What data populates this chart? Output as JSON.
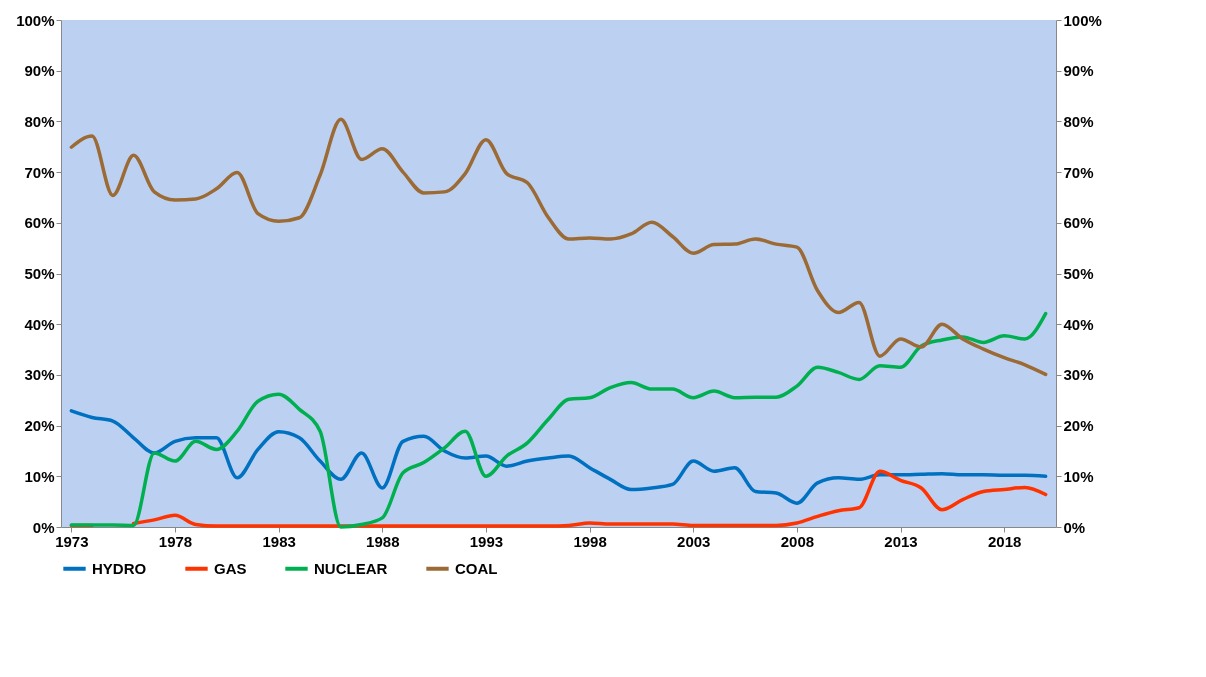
{
  "chart_data": {
    "type": "line",
    "x": [
      1973,
      1974,
      1975,
      1976,
      1977,
      1978,
      1979,
      1980,
      1981,
      1982,
      1983,
      1984,
      1985,
      1986,
      1987,
      1988,
      1989,
      1990,
      1991,
      1992,
      1993,
      1994,
      1995,
      1996,
      1997,
      1998,
      1999,
      2000,
      2001,
      2002,
      2003,
      2004,
      2005,
      2006,
      2007,
      2008,
      2009,
      2010,
      2011,
      2012,
      2013,
      2014,
      2015,
      2016,
      2017,
      2018,
      2019,
      2020
    ],
    "series": [
      {
        "name": "HYDRO",
        "color": "#0070c0",
        "values": [
          22.9,
          21.6,
          20.9,
          17.6,
          14.6,
          16.9,
          17.6,
          17.6,
          9.7,
          15.3,
          18.8,
          17.6,
          13.0,
          9.4,
          14.6,
          7.7,
          16.9,
          17.9,
          15.0,
          13.6,
          14.0,
          12.0,
          13.0,
          13.6,
          14.0,
          11.7,
          9.4,
          7.4,
          7.7,
          8.4,
          13.0,
          11.0,
          11.7,
          7.0,
          6.7,
          4.7,
          8.7,
          9.7,
          9.4,
          10.3,
          10.3,
          10.4,
          10.5,
          10.3,
          10.3,
          10.2,
          10.2,
          10.0
        ]
      },
      {
        "name": "GAS",
        "color": "#ff3300",
        "values": [
          0.3,
          0.3,
          null,
          0.7,
          1.4,
          2.3,
          0.5,
          0.2,
          0.2,
          0.2,
          0.2,
          0.2,
          0.2,
          0.2,
          0.2,
          0.2,
          0.2,
          0.2,
          0.2,
          0.2,
          0.2,
          0.2,
          0.2,
          0.2,
          0.3,
          0.8,
          0.6,
          0.6,
          0.6,
          0.6,
          0.3,
          0.3,
          0.3,
          0.3,
          0.3,
          0.8,
          2.1,
          3.2,
          3.8,
          11.0,
          9.2,
          7.7,
          3.4,
          5.4,
          7.0,
          7.4,
          7.8,
          6.4
        ]
      },
      {
        "name": "NUCLEAR",
        "color": "#00b050",
        "values": [
          0.4,
          0.4,
          0.4,
          0.3,
          14.6,
          13.0,
          16.9,
          15.3,
          18.9,
          24.8,
          26.2,
          23.2,
          18.9,
          0,
          0.5,
          1.8,
          10.7,
          12.7,
          15.6,
          18.9,
          10.0,
          14.0,
          16.6,
          21.2,
          25.2,
          25.5,
          27.5,
          28.5,
          27.2,
          27.2,
          25.5,
          26.8,
          25.5,
          25.6,
          25.6,
          27.8,
          31.5,
          30.5,
          29.1,
          31.8,
          31.5,
          35.7,
          36.9,
          37.5,
          36.4,
          37.7,
          37.1,
          42.1
        ]
      },
      {
        "name": "COAL",
        "color": "#9b6a35",
        "values": [
          74.9,
          77.1,
          65.4,
          73.3,
          66.1,
          64.5,
          64.7,
          66.7,
          69.9,
          61.8,
          60.3,
          61.0,
          69.4,
          80.4,
          72.5,
          74.6,
          70.0,
          65.9,
          66.1,
          69.7,
          76.4,
          69.7,
          67.9,
          61.1,
          56.8,
          57.0,
          56.8,
          57.8,
          60.1,
          57.3,
          54.0,
          55.7,
          55.8,
          56.8,
          55.8,
          55.2,
          46.6,
          42.3,
          44.3,
          33.7,
          37.1,
          35.5,
          40.0,
          37.1,
          35.1,
          33.4,
          32.0,
          30.1
        ]
      }
    ],
    "xlim": [
      1972.5,
      2020.5
    ],
    "xticks": [
      1973,
      1978,
      1983,
      1988,
      1993,
      1998,
      2003,
      2008,
      2013,
      2018
    ],
    "ylim": [
      0,
      100
    ],
    "yticks": [
      {
        "value": 0,
        "label": "0%"
      },
      {
        "value": 10,
        "label": "10%"
      },
      {
        "value": 20,
        "label": "20%"
      },
      {
        "value": 30,
        "label": "30%"
      },
      {
        "value": 40,
        "label": "40%"
      },
      {
        "value": 50,
        "label": "50%"
      },
      {
        "value": 60,
        "label": "60%"
      },
      {
        "value": 70,
        "label": "70%"
      },
      {
        "value": 80,
        "label": "80%"
      },
      {
        "value": 90,
        "label": "90%"
      },
      {
        "value": 100,
        "label": "100%"
      }
    ],
    "y2lim": [
      0,
      100
    ],
    "y2ticks": [
      {
        "value": 0,
        "label": "0%"
      },
      {
        "value": 10,
        "label": "10%"
      },
      {
        "value": 20,
        "label": "20%"
      },
      {
        "value": 30,
        "label": "30%"
      },
      {
        "value": 40,
        "label": "40%"
      },
      {
        "value": 50,
        "label": "50%"
      },
      {
        "value": 60,
        "label": "60%"
      },
      {
        "value": 70,
        "label": "70%"
      },
      {
        "value": 80,
        "label": "80%"
      },
      {
        "value": 90,
        "label": "90%"
      },
      {
        "value": 100,
        "label": "100%"
      }
    ],
    "grid": false,
    "legend": "bottom",
    "marker": "none",
    "line_style": "solid"
  }
}
